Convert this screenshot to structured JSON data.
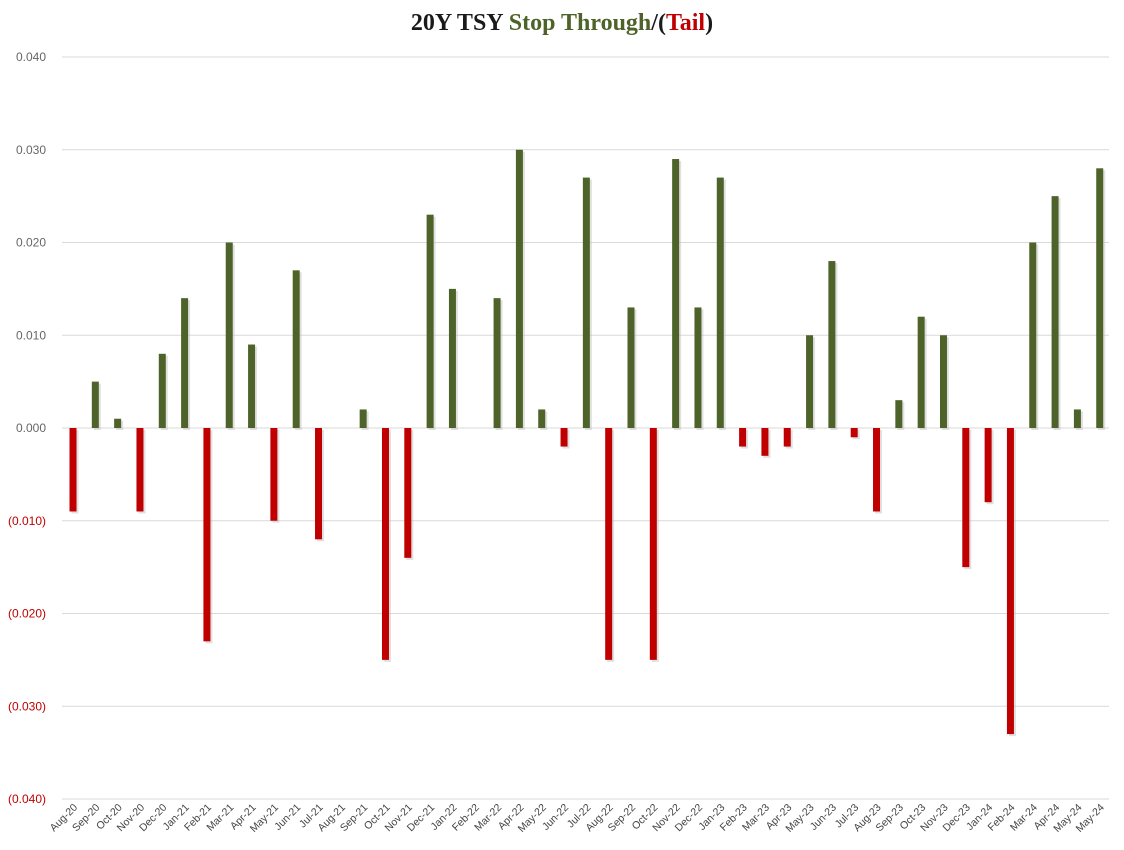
{
  "chart_data": {
    "type": "bar",
    "title_parts": [
      {
        "text": "20Y TSY ",
        "color": "#1a1a1a"
      },
      {
        "text": "Stop Through",
        "color": "#4e6329"
      },
      {
        "text": "/",
        "color": "#1a1a1a"
      },
      {
        "text": "(",
        "color": "#1a1a1a"
      },
      {
        "text": "Tail",
        "color": "#c00000"
      },
      {
        "text": ")",
        "color": "#1a1a1a"
      }
    ],
    "xlabel": "",
    "ylabel": "",
    "ylim": [
      -0.04,
      0.04
    ],
    "yticks": [
      0.04,
      0.03,
      0.02,
      0.01,
      0.0,
      -0.01,
      -0.02,
      -0.03,
      -0.04
    ],
    "ytick_labels": [
      "0.040",
      "0.030",
      "0.020",
      "0.010",
      "0.000",
      "(0.010)",
      "(0.020)",
      "(0.030)",
      "(0.040)"
    ],
    "grid": true,
    "positive_color": "#4e6329",
    "negative_color": "#c00000",
    "axis_label_color": "#666666",
    "negative_label_color": "#c00000",
    "categories": [
      "Aug-20",
      "Sep-20",
      "Oct-20",
      "Nov-20",
      "Dec-20",
      "Jan-21",
      "Feb-21",
      "Mar-21",
      "Apr-21",
      "May-21",
      "Jun-21",
      "Jul-21",
      "Aug-21",
      "Sep-21",
      "Oct-21",
      "Nov-21",
      "Dec-21",
      "Jan-22",
      "Feb-22",
      "Mar-22",
      "Apr-22",
      "May-22",
      "Jun-22",
      "Jul-22",
      "Aug-22",
      "Sep-22",
      "Oct-22",
      "Nov-22",
      "Dec-22",
      "Jan-23",
      "Feb-23",
      "Mar-23",
      "Apr-23",
      "May-23",
      "Jun-23",
      "Jul-23",
      "Aug-23",
      "Sep-23",
      "Oct-23",
      "Nov-23",
      "Dec-23",
      "Jan-24",
      "Feb-24",
      "Mar-24",
      "Apr-24",
      "May-24",
      "May-24"
    ],
    "values": [
      -0.009,
      0.005,
      0.001,
      -0.009,
      0.008,
      0.014,
      -0.023,
      0.02,
      0.009,
      -0.01,
      0.017,
      -0.012,
      0.0,
      0.002,
      -0.025,
      -0.014,
      0.023,
      0.015,
      0.0,
      0.014,
      0.03,
      0.002,
      -0.002,
      0.027,
      -0.025,
      0.013,
      -0.025,
      0.029,
      0.013,
      0.027,
      -0.002,
      -0.003,
      -0.002,
      0.01,
      0.018,
      -0.001,
      -0.009,
      0.003,
      0.012,
      0.01,
      -0.015,
      -0.008,
      -0.033,
      0.02,
      0.025,
      0.002,
      0.028
    ]
  }
}
